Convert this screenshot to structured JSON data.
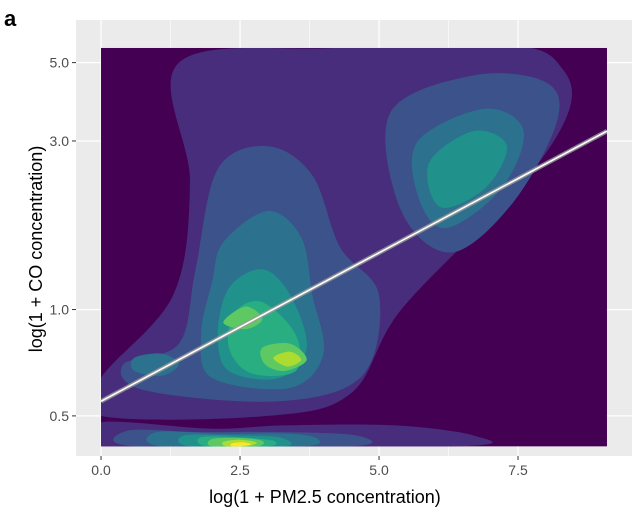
{
  "panel_label": "a",
  "chart_data": {
    "type": "heatmap",
    "subtype": "2d-density-contour-with-regression-line",
    "title": "",
    "xlabel": "log(1 + PM2.5 concentration)",
    "ylabel": "log(1 + CO concentration)",
    "x_ticks": [
      0.0,
      2.5,
      5.0,
      7.5
    ],
    "x_tick_labels": [
      "0.0",
      "2.5",
      "5.0",
      "7.5"
    ],
    "y_ticks": [
      0.5,
      1.0,
      3.0,
      5.0
    ],
    "y_tick_labels": [
      "0.5",
      "1.0",
      "3.0",
      "5.0"
    ],
    "y_scale": "log",
    "xlim": [
      -0.45,
      9.55
    ],
    "ylim": [
      0.385,
      6.6
    ],
    "data_xlim": [
      0.0,
      9.1
    ],
    "data_ylim": [
      0.41,
      5.5
    ],
    "grid": true,
    "legend": "none",
    "density_peaks": [
      {
        "x": 2.5,
        "y": 0.42,
        "level": "highest"
      },
      {
        "x": 3.3,
        "y": 0.72,
        "level": "high"
      },
      {
        "x": 2.6,
        "y": 0.96,
        "level": "high"
      },
      {
        "x": 6.5,
        "y": 2.3,
        "level": "medium"
      },
      {
        "x": 0.9,
        "y": 0.7,
        "level": "medium"
      }
    ],
    "regression_line": {
      "x": [
        0.0,
        9.1
      ],
      "y": [
        0.55,
        3.2
      ]
    },
    "colors": {
      "background": "#440154",
      "line": "#ffffff",
      "levels": [
        "#440154",
        "#472d7b",
        "#3b528b",
        "#2c728e",
        "#21918c",
        "#28ae80",
        "#5ec962",
        "#addc30",
        "#fde725"
      ]
    }
  }
}
